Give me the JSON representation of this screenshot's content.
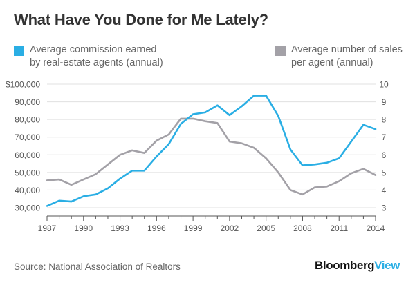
{
  "title": "What Have You Done for Me Lately?",
  "legend": {
    "left": {
      "line1": "Average commission earned",
      "line2": "by real-estate agents (annual)"
    },
    "right": {
      "line1": "Average number of sales",
      "line2": "per agent (annual)"
    }
  },
  "source": "Source: National Association of Realtors",
  "brand": {
    "part1": "Bloomberg",
    "part2": "View"
  },
  "colors": {
    "commission": "#2aaee4",
    "sales": "#a3a1a7",
    "grid": "#e0e0e0",
    "axis": "#555555",
    "tick_label": "#555555"
  },
  "chart_data": {
    "type": "line",
    "x": [
      1987,
      1988,
      1989,
      1990,
      1991,
      1992,
      1993,
      1994,
      1995,
      1996,
      1997,
      1998,
      1999,
      2000,
      2001,
      2002,
      2003,
      2004,
      2005,
      2006,
      2007,
      2008,
      2009,
      2010,
      2011,
      2012,
      2013,
      2014
    ],
    "x_ticks": [
      1987,
      1990,
      1993,
      1996,
      1999,
      2002,
      2005,
      2008,
      2011,
      2014
    ],
    "xlim": [
      1987,
      2014
    ],
    "series": [
      {
        "name": "Average commission earned by real-estate agents (annual)",
        "axis": "left",
        "values": [
          31000,
          34000,
          33500,
          36500,
          37500,
          41000,
          46500,
          51000,
          51000,
          59000,
          66000,
          77500,
          83000,
          84000,
          88000,
          82500,
          87500,
          93500,
          93500,
          82000,
          63000,
          54000,
          54500,
          55500,
          58000,
          67500,
          77000,
          74500
        ]
      },
      {
        "name": "Average number of sales per agent (annual)",
        "axis": "right",
        "values": [
          4.55,
          4.6,
          4.3,
          4.6,
          4.9,
          5.45,
          6.0,
          6.25,
          6.1,
          6.8,
          7.15,
          8.05,
          8.05,
          7.9,
          7.8,
          6.75,
          6.65,
          6.4,
          5.8,
          5.0,
          4.0,
          3.75,
          4.15,
          4.2,
          4.5,
          4.95,
          5.2,
          4.85
        ]
      }
    ],
    "y_left": {
      "ticks": [
        "$100,000",
        "90,000",
        "80,000",
        "70,000",
        "60,000",
        "50,000",
        "40,000",
        "30,000"
      ],
      "tick_values": [
        100000,
        90000,
        80000,
        70000,
        60000,
        50000,
        40000,
        30000
      ],
      "ylim": [
        30000,
        100000
      ]
    },
    "y_right": {
      "ticks": [
        "10",
        "9",
        "8",
        "7",
        "6",
        "5",
        "4",
        "3"
      ],
      "tick_values": [
        10,
        9,
        8,
        7,
        6,
        5,
        4,
        3
      ],
      "ylim": [
        3,
        10
      ]
    },
    "grid": true,
    "legend_position": "top"
  }
}
